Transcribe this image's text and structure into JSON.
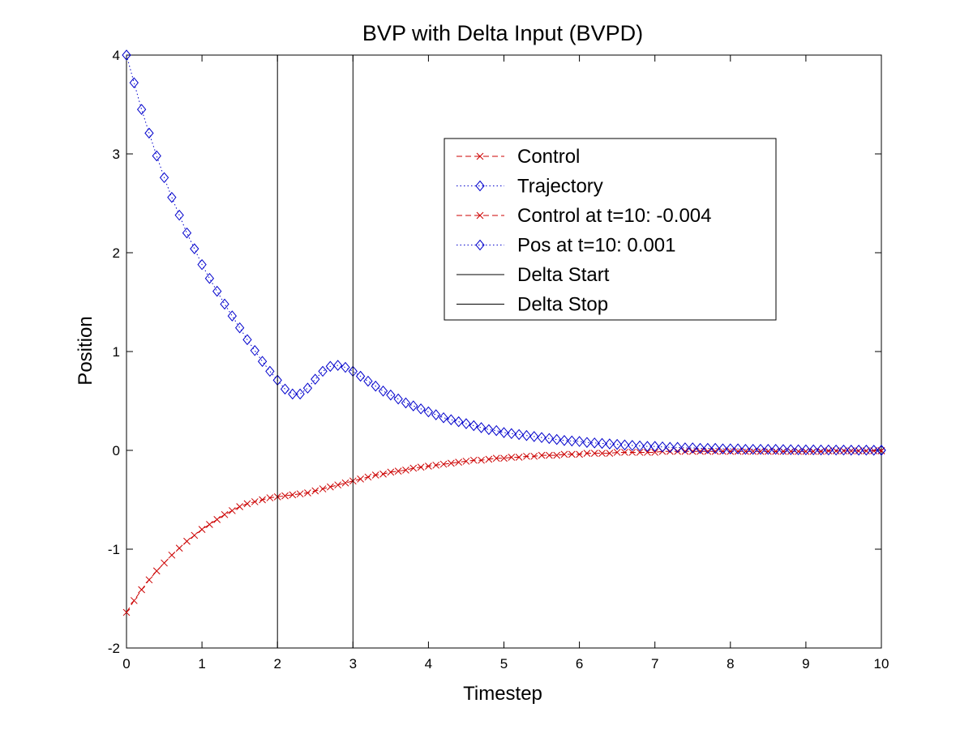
{
  "chart_data": {
    "type": "line",
    "title": "BVP with Delta Input (BVPD)",
    "xlabel": "Timestep",
    "ylabel": "Position",
    "xlim": [
      0,
      10
    ],
    "ylim": [
      -2,
      4
    ],
    "xticks": [
      "0",
      "1",
      "2",
      "3",
      "4",
      "5",
      "6",
      "7",
      "8",
      "9",
      "10"
    ],
    "yticks": [
      "-2",
      "-1",
      "0",
      "1",
      "2",
      "3",
      "4"
    ],
    "grid": false,
    "legend_position": "upper-right",
    "colors": {
      "control": "#cc0000",
      "trajectory": "#0000cc",
      "delta": "#000000"
    },
    "series": [
      {
        "name": "Control",
        "marker": "x",
        "linestyle": "dashed",
        "x": [
          0,
          0.1,
          0.2,
          0.3,
          0.4,
          0.5,
          0.6,
          0.7,
          0.8,
          0.9,
          1,
          1.1,
          1.2,
          1.3,
          1.4,
          1.5,
          1.6,
          1.7,
          1.8,
          1.9,
          2,
          2.1,
          2.2,
          2.3,
          2.4,
          2.5,
          2.6,
          2.7,
          2.8,
          2.9,
          3,
          3.1,
          3.2,
          3.3,
          3.4,
          3.5,
          3.6,
          3.7,
          3.8,
          3.9,
          4,
          4.1,
          4.2,
          4.3,
          4.4,
          4.5,
          4.6,
          4.7,
          4.8,
          4.9,
          5,
          5.1,
          5.2,
          5.3,
          5.4,
          5.5,
          5.6,
          5.7,
          5.8,
          5.9,
          6,
          6.1,
          6.2,
          6.3,
          6.4,
          6.5,
          6.6,
          6.7,
          6.8,
          6.9,
          7,
          7.1,
          7.2,
          7.3,
          7.4,
          7.5,
          7.6,
          7.7,
          7.8,
          7.9,
          8,
          8.1,
          8.2,
          8.3,
          8.4,
          8.5,
          8.6,
          8.7,
          8.8,
          8.9,
          9,
          9.1,
          9.2,
          9.3,
          9.4,
          9.5,
          9.6,
          9.7,
          9.8,
          9.9,
          10
        ],
        "y": [
          -1.64,
          -1.52,
          -1.41,
          -1.31,
          -1.22,
          -1.14,
          -1.06,
          -0.99,
          -0.92,
          -0.86,
          -0.8,
          -0.75,
          -0.7,
          -0.65,
          -0.61,
          -0.57,
          -0.54,
          -0.52,
          -0.5,
          -0.48,
          -0.47,
          -0.46,
          -0.45,
          -0.44,
          -0.43,
          -0.41,
          -0.39,
          -0.37,
          -0.35,
          -0.33,
          -0.31,
          -0.29,
          -0.27,
          -0.25,
          -0.24,
          -0.22,
          -0.21,
          -0.2,
          -0.18,
          -0.17,
          -0.16,
          -0.15,
          -0.14,
          -0.13,
          -0.12,
          -0.11,
          -0.1,
          -0.1,
          -0.09,
          -0.08,
          -0.08,
          -0.07,
          -0.07,
          -0.06,
          -0.06,
          -0.05,
          -0.05,
          -0.05,
          -0.04,
          -0.04,
          -0.04,
          -0.03,
          -0.03,
          -0.03,
          -0.03,
          -0.02,
          -0.02,
          -0.02,
          -0.02,
          -0.02,
          -0.02,
          -0.01,
          -0.01,
          -0.01,
          -0.01,
          -0.01,
          -0.01,
          -0.01,
          -0.01,
          -0.01,
          -0.01,
          -0.01,
          -0.01,
          -0.01,
          -0.01,
          -0.01,
          -0.01,
          -0.01,
          -0.01,
          -0.01,
          -0.01,
          -0.01,
          -0.01,
          -0.005,
          -0.005,
          -0.005,
          -0.005,
          -0.005,
          -0.005,
          -0.004,
          -0.004
        ]
      },
      {
        "name": "Trajectory",
        "marker": "diamond",
        "linestyle": "dotted",
        "x": [
          0,
          0.1,
          0.2,
          0.3,
          0.4,
          0.5,
          0.6,
          0.7,
          0.8,
          0.9,
          1,
          1.1,
          1.2,
          1.3,
          1.4,
          1.5,
          1.6,
          1.7,
          1.8,
          1.9,
          2,
          2.1,
          2.2,
          2.3,
          2.4,
          2.5,
          2.6,
          2.7,
          2.8,
          2.9,
          3,
          3.1,
          3.2,
          3.3,
          3.4,
          3.5,
          3.6,
          3.7,
          3.8,
          3.9,
          4,
          4.1,
          4.2,
          4.3,
          4.4,
          4.5,
          4.6,
          4.7,
          4.8,
          4.9,
          5,
          5.1,
          5.2,
          5.3,
          5.4,
          5.5,
          5.6,
          5.7,
          5.8,
          5.9,
          6,
          6.1,
          6.2,
          6.3,
          6.4,
          6.5,
          6.6,
          6.7,
          6.8,
          6.9,
          7,
          7.1,
          7.2,
          7.3,
          7.4,
          7.5,
          7.6,
          7.7,
          7.8,
          7.9,
          8,
          8.1,
          8.2,
          8.3,
          8.4,
          8.5,
          8.6,
          8.7,
          8.8,
          8.9,
          9,
          9.1,
          9.2,
          9.3,
          9.4,
          9.5,
          9.6,
          9.7,
          9.8,
          9.9,
          10
        ],
        "y": [
          4,
          3.72,
          3.45,
          3.21,
          2.98,
          2.76,
          2.56,
          2.38,
          2.2,
          2.04,
          1.88,
          1.74,
          1.61,
          1.48,
          1.36,
          1.24,
          1.12,
          1.01,
          0.9,
          0.8,
          0.71,
          0.62,
          0.57,
          0.57,
          0.63,
          0.72,
          0.8,
          0.85,
          0.86,
          0.84,
          0.8,
          0.75,
          0.7,
          0.65,
          0.6,
          0.56,
          0.52,
          0.48,
          0.45,
          0.42,
          0.39,
          0.36,
          0.33,
          0.31,
          0.29,
          0.27,
          0.25,
          0.23,
          0.21,
          0.2,
          0.18,
          0.17,
          0.16,
          0.15,
          0.14,
          0.13,
          0.12,
          0.11,
          0.1,
          0.095,
          0.09,
          0.08,
          0.075,
          0.07,
          0.065,
          0.06,
          0.055,
          0.05,
          0.045,
          0.04,
          0.04,
          0.035,
          0.03,
          0.03,
          0.025,
          0.025,
          0.02,
          0.02,
          0.02,
          0.015,
          0.015,
          0.015,
          0.01,
          0.01,
          0.01,
          0.01,
          0.01,
          0.008,
          0.007,
          0.006,
          0.005,
          0.005,
          0.004,
          0.004,
          0.003,
          0.003,
          0.002,
          0.002,
          0.002,
          0.001,
          0.001
        ]
      },
      {
        "name": "Control at t=10:  -0.004",
        "marker": "x",
        "linestyle": "dashed",
        "x": [
          10
        ],
        "y": [
          -0.004
        ]
      },
      {
        "name": "Pos at t=10:  0.001",
        "marker": "diamond",
        "linestyle": "dotted",
        "x": [
          10
        ],
        "y": [
          0.001
        ]
      },
      {
        "name": "Delta Start",
        "marker": "none",
        "linestyle": "solid",
        "x": [
          2,
          2
        ],
        "y": [
          -2,
          4
        ]
      },
      {
        "name": "Delta Stop",
        "marker": "none",
        "linestyle": "solid",
        "x": [
          3,
          3
        ],
        "y": [
          -2,
          4
        ]
      }
    ]
  }
}
